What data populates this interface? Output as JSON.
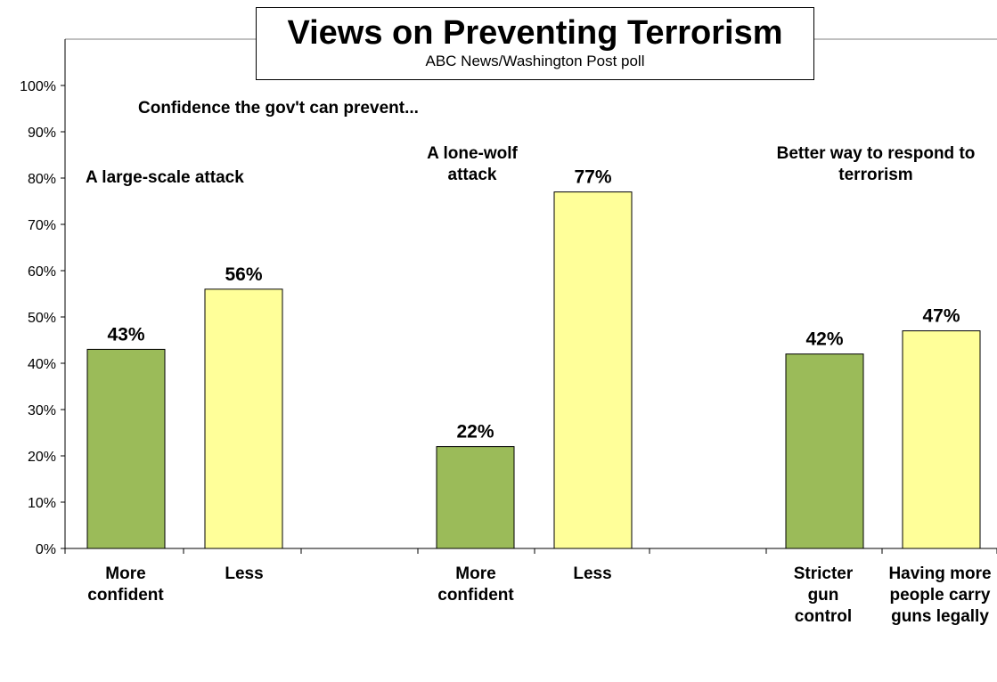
{
  "chart_data": {
    "type": "bar",
    "title": "Views on Preventing Terrorism",
    "subtitle": "ABC News/Washington  Post poll",
    "ylim": [
      0,
      100
    ],
    "yticks": [
      "0%",
      "10%",
      "20%",
      "30%",
      "40%",
      "50%",
      "60%",
      "70%",
      "80%",
      "90%",
      "100%"
    ],
    "categories": [
      "More confident",
      "Less",
      "More confident",
      "Less",
      "Stricter gun control",
      "Having more people carry guns legally"
    ],
    "values": [
      43,
      56,
      22,
      77,
      42,
      47
    ],
    "value_labels": [
      "43%",
      "56%",
      "22%",
      "77%",
      "42%",
      "47%"
    ],
    "bar_colors": [
      "#9bbb59",
      "#ffff99",
      "#9bbb59",
      "#ffff99",
      "#9bbb59",
      "#ffff99"
    ],
    "annotations": {
      "confidence_header": "Confidence the gov't  can prevent...",
      "large_scale": "A large-scale attack",
      "lone_wolf": "A lone-wolf attack",
      "better_way": "Better way to respond to terrorism"
    },
    "grid": false
  },
  "colors": {
    "green": "#9bbb59",
    "yellow": "#ffff99",
    "axis": "#808080"
  }
}
